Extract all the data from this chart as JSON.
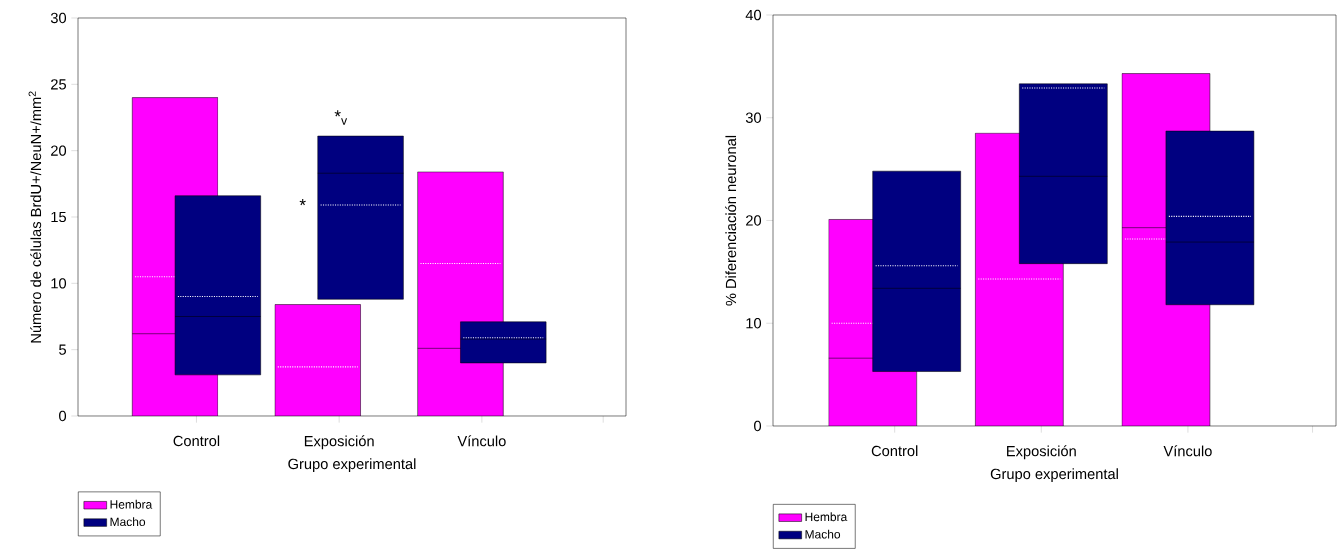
{
  "chart_data": [
    {
      "type": "box",
      "categories": [
        "Control",
        "Exposición",
        "Vínculo"
      ],
      "xlabel": "Grupo experimental",
      "ylabel": "Número de células BrdU+/NeuN+/mm$^{2}$",
      "ylim": [
        0,
        30
      ],
      "yticks": [
        0,
        5,
        10,
        15,
        20,
        25,
        30
      ],
      "legend": "bottom left",
      "series": [
        {
          "name": "Hembra",
          "color": "#ff00ff",
          "boxes": [
            {
              "low": 0,
              "q1": 0,
              "median": 6.2,
              "q3": 24.0,
              "high": 24.0,
              "mean": 10.5
            },
            {
              "low": 0,
              "q1": 0,
              "median": null,
              "q3": 8.4,
              "high": 8.4,
              "mean": 3.7
            },
            {
              "low": 0,
              "q1": 0,
              "median": 5.1,
              "q3": 18.4,
              "high": 18.4,
              "mean": 11.5
            }
          ]
        },
        {
          "name": "Macho",
          "color": "#000080",
          "boxes": [
            {
              "low": 3.1,
              "q1": 3.1,
              "median": 7.5,
              "q3": 16.6,
              "high": 16.6,
              "mean": 9.0
            },
            {
              "low": 8.8,
              "q1": 8.8,
              "median": 18.3,
              "q3": 21.1,
              "high": 21.1,
              "mean": 15.9
            },
            {
              "low": 4.0,
              "q1": 4.0,
              "median": 5.8,
              "q3": 7.1,
              "high": 7.1,
              "mean": 5.9
            }
          ]
        }
      ],
      "annotations": [
        "*",
        "*$_{v}$"
      ]
    },
    {
      "type": "box",
      "categories": [
        "Control",
        "Exposición",
        "Vínculo"
      ],
      "xlabel": "Grupo experimental",
      "ylabel": "% Diferenciación neuronal",
      "ylim": [
        0,
        40
      ],
      "yticks": [
        0,
        10,
        20,
        30,
        40
      ],
      "legend": "bottom left",
      "series": [
        {
          "name": "Hembra",
          "color": "#ff00ff",
          "boxes": [
            {
              "low": 0,
              "q1": 0,
              "median": 6.6,
              "q3": 20.1,
              "high": 20.1,
              "mean": 10.0
            },
            {
              "low": 0,
              "q1": 0,
              "median": null,
              "q3": 28.5,
              "high": 28.5,
              "mean": 14.3
            },
            {
              "low": 0,
              "q1": 0,
              "median": 19.3,
              "q3": 34.3,
              "high": 34.3,
              "mean": 18.2
            }
          ]
        },
        {
          "name": "Macho",
          "color": "#000080",
          "boxes": [
            {
              "low": 5.3,
              "q1": 5.3,
              "median": 13.4,
              "q3": 24.8,
              "high": 24.8,
              "mean": 15.6
            },
            {
              "low": 15.8,
              "q1": 15.8,
              "median": 24.3,
              "q3": 33.3,
              "high": 33.3,
              "mean": 32.9
            },
            {
              "low": 11.8,
              "q1": 11.8,
              "median": 17.9,
              "q3": 28.7,
              "high": 28.7,
              "mean": 20.4
            }
          ]
        }
      ]
    }
  ]
}
